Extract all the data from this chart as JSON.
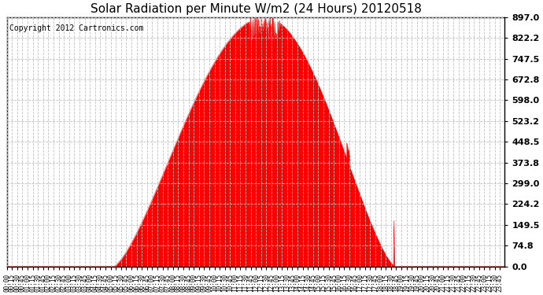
{
  "title": "Solar Radiation per Minute W/m2 (24 Hours) 20120518",
  "copyright_text": "Copyright 2012 Cartronics.com",
  "y_max": 897.0,
  "y_min": 0.0,
  "y_ticks": [
    0.0,
    74.8,
    149.5,
    224.2,
    299.0,
    373.8,
    448.5,
    523.2,
    598.0,
    672.8,
    747.5,
    822.2,
    897.0
  ],
  "fill_color": "#FF0000",
  "line_color": "#FF0000",
  "dashed_line_color": "#FF0000",
  "grid_color": "#C0C0C0",
  "bg_color": "#FFFFFF",
  "title_fontsize": 11,
  "copyright_fontsize": 7,
  "ytick_fontsize": 8,
  "xtick_fontsize": 5.5,
  "solar_peak": 897.0,
  "rise_minute": 308,
  "set_minute": 1122,
  "peak_minute": 745,
  "total_minutes": 1440
}
